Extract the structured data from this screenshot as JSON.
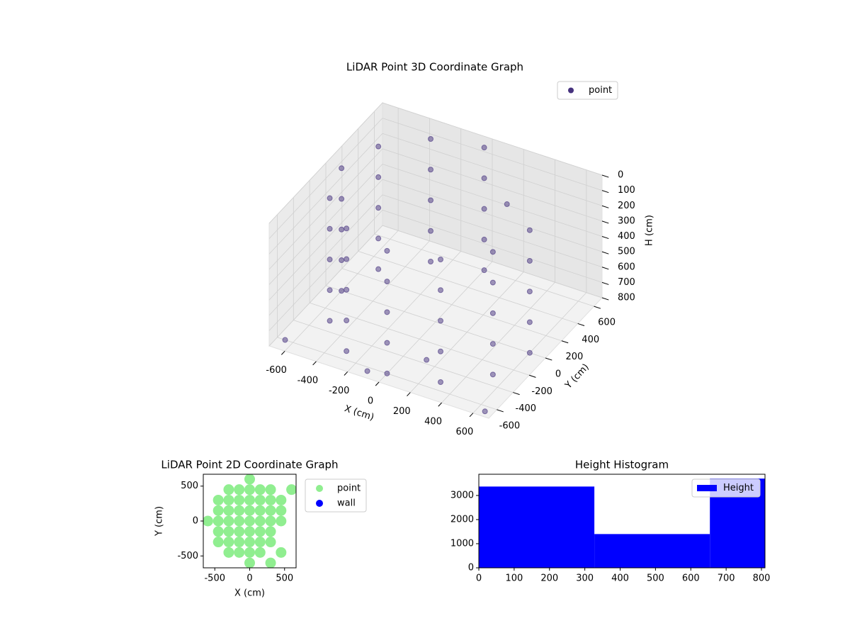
{
  "chart_data": [
    {
      "type": "scatter3d",
      "title": "LiDAR Point 3D Coordinate Graph",
      "xlabel": "X (cm)",
      "ylabel": "Y (cm)",
      "zlabel": "H (cm)",
      "xlim": [
        -700,
        700
      ],
      "ylim": [
        -700,
        700
      ],
      "zlim": [
        800,
        0
      ],
      "xticks": [
        -600,
        -400,
        -200,
        0,
        200,
        400,
        600
      ],
      "yticks": [
        -600,
        -400,
        -200,
        0,
        200,
        400,
        600
      ],
      "zticks": [
        0,
        100,
        200,
        300,
        400,
        500,
        600,
        700,
        800
      ],
      "grid": true,
      "legend": "upper right",
      "series": [
        {
          "name": "point",
          "color": "#46327e",
          "x": [
            0,
            -300,
            -520,
            -600,
            -520,
            -300,
            0,
            300,
            520,
            600,
            0,
            -300,
            -520,
            -600,
            -520,
            -300,
            0,
            300,
            520,
            600,
            0,
            -300,
            -520,
            -600,
            -520,
            -300,
            0,
            300,
            520,
            600,
            0,
            -300,
            -520,
            -600,
            -520,
            -300,
            0,
            300,
            520,
            600,
            0,
            -300,
            -520,
            -600,
            -520,
            -300,
            0,
            300,
            520,
            600,
            -650,
            650,
            200,
            300,
            -100
          ],
          "y": [
            600,
            520,
            300,
            0,
            -300,
            -520,
            -600,
            -520,
            -300,
            0,
            600,
            520,
            300,
            0,
            -300,
            -520,
            -600,
            -520,
            -300,
            0,
            600,
            520,
            300,
            0,
            -300,
            -520,
            -600,
            -520,
            -300,
            0,
            600,
            520,
            300,
            0,
            -300,
            -520,
            -600,
            -520,
            -300,
            0,
            600,
            520,
            300,
            0,
            -300,
            -520,
            -600,
            -520,
            -300,
            0,
            -600,
            -650,
            -500,
            300,
            -650
          ],
          "values": [
            0,
            0,
            0,
            0,
            0,
            0,
            0,
            0,
            0,
            0,
            200,
            200,
            200,
            200,
            200,
            200,
            200,
            200,
            200,
            200,
            400,
            400,
            400,
            400,
            400,
            400,
            400,
            400,
            400,
            400,
            600,
            600,
            600,
            600,
            600,
            600,
            600,
            600,
            600,
            600,
            800,
            800,
            800,
            800,
            800,
            800,
            800,
            800,
            800,
            800,
            800,
            800,
            700,
            100,
            790
          ]
        }
      ]
    },
    {
      "type": "scatter",
      "title": "LiDAR Point 2D Coordinate Graph",
      "xlabel": "X (cm)",
      "ylabel": "Y (cm)",
      "xlim": [
        -665,
        665
      ],
      "ylim": [
        -670,
        670
      ],
      "xticks": [
        -500,
        0,
        500
      ],
      "yticks": [
        -500,
        0,
        500
      ],
      "legend": "outside right",
      "series": [
        {
          "name": "point",
          "color": "#90ee90",
          "x": [
            -600,
            -450,
            -450,
            -450,
            -450,
            -450,
            -300,
            -300,
            -300,
            -300,
            -300,
            -300,
            -300,
            -150,
            -150,
            -150,
            -150,
            -150,
            -150,
            -150,
            0,
            0,
            0,
            0,
            0,
            0,
            0,
            0,
            0,
            150,
            150,
            150,
            150,
            150,
            150,
            150,
            300,
            300,
            300,
            300,
            300,
            300,
            450,
            450,
            450,
            450,
            300,
            600
          ],
          "values": [
            0,
            -300,
            -150,
            0,
            150,
            300,
            -450,
            -300,
            -150,
            0,
            150,
            300,
            450,
            -450,
            -300,
            -150,
            0,
            150,
            300,
            450,
            -600,
            -450,
            -300,
            -150,
            0,
            150,
            300,
            450,
            600,
            -450,
            -300,
            -150,
            0,
            150,
            300,
            450,
            -300,
            -150,
            0,
            150,
            300,
            450,
            0,
            150,
            300,
            -450,
            -600,
            450
          ]
        },
        {
          "name": "wall",
          "color": "#0000ff",
          "x": [],
          "values": []
        }
      ]
    },
    {
      "type": "histogram",
      "title": "Height Histogram",
      "bins": [
        0,
        327,
        654,
        981
      ],
      "xlim": [
        0,
        810
      ],
      "ylim": [
        0,
        3880
      ],
      "xticks": [
        0,
        100,
        200,
        300,
        400,
        500,
        600,
        700,
        800
      ],
      "yticks": [
        0,
        1000,
        2000,
        3000
      ],
      "legend": "upper right",
      "series": [
        {
          "name": "Height",
          "color": "#0000ff",
          "values": [
            3370,
            1400,
            3700
          ]
        }
      ]
    }
  ]
}
